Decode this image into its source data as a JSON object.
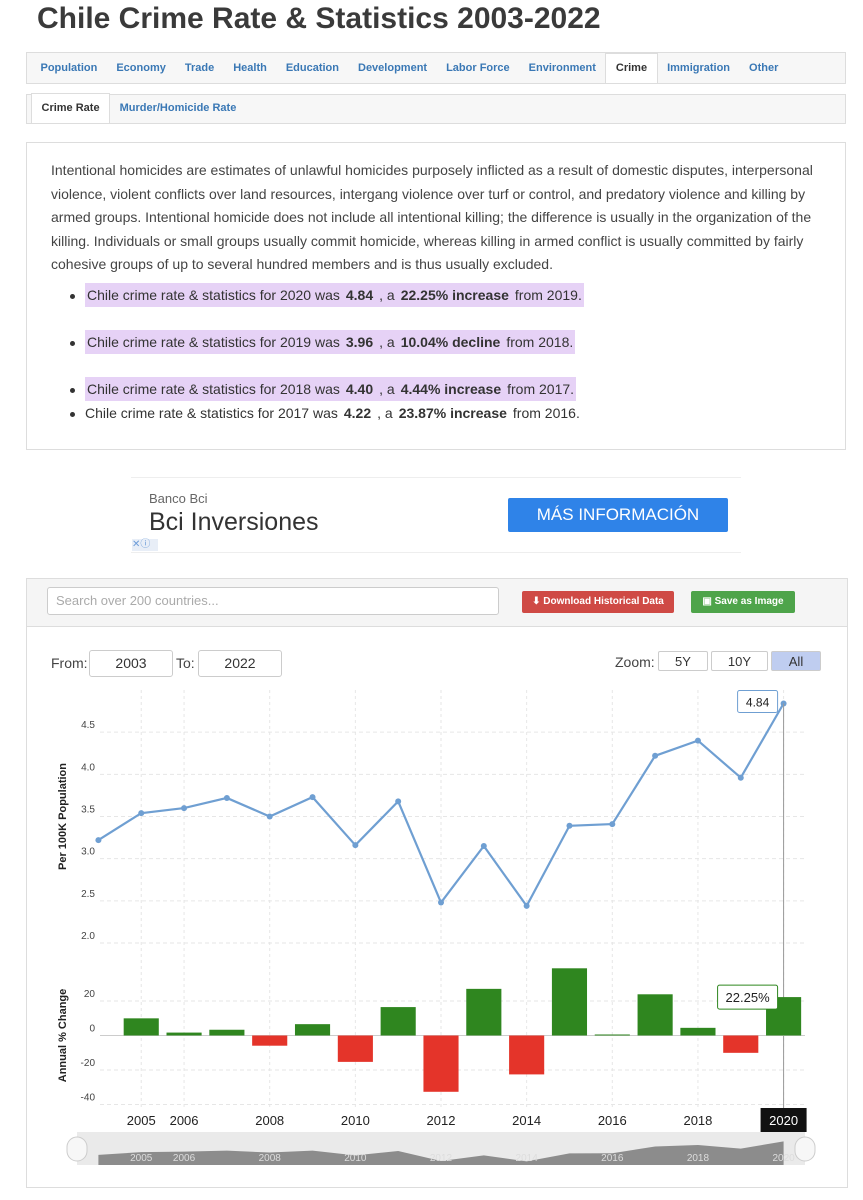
{
  "title": "Chile Crime Rate & Statistics 2003-2022",
  "tabs": [
    "Population",
    "Economy",
    "Trade",
    "Health",
    "Education",
    "Development",
    "Labor Force",
    "Environment",
    "Crime",
    "Immigration",
    "Other"
  ],
  "active_tab": 8,
  "subtabs": [
    "Crime Rate",
    "Murder/Homicide Rate"
  ],
  "active_subtab": 0,
  "description": "Intentional homicides are estimates of unlawful homicides purposely inflicted as a result of domestic disputes, interpersonal violence, violent conflicts over land resources, intergang violence over turf or control, and predatory violence and killing by armed groups. Intentional homicide does not include all intentional killing; the difference is usually in the organization of the killing. Individuals or small groups usually commit homicide, whereas killing in armed conflict is usually committed by fairly cohesive groups of up to several hundred members and is thus usually excluded.",
  "bullets": [
    {
      "text": "Chile crime rate & statistics for 2020 was",
      "value": "4.84",
      "sep": ", a",
      "change": "22.25% increase",
      "suffix": "from 2019.",
      "highlight": true
    },
    {
      "text": "Chile crime rate & statistics for 2019 was",
      "value": "3.96",
      "sep": ", a",
      "change": "10.04% decline",
      "suffix": "from 2018.",
      "highlight": true
    },
    {
      "text": "Chile crime rate & statistics for 2018 was",
      "value": "4.40",
      "sep": ", a",
      "change": "4.44% increase",
      "suffix": "from 2017.",
      "highlight": true
    },
    {
      "text": "Chile crime rate & statistics for 2017 was",
      "value": "4.22",
      "sep": ", a",
      "change": "23.87% increase",
      "suffix": "from 2016.",
      "highlight": false
    }
  ],
  "ad": {
    "advertiser": "Banco Bci",
    "headline": "Bci Inversiones",
    "button": "MÁS INFORMACIÓN"
  },
  "search_placeholder": "Search over 200 countries...",
  "buttons": [
    "Download Historical Data",
    "Save as Image"
  ],
  "range": {
    "from_label": "From:",
    "from": "2003",
    "to_label": "To:",
    "to": "2022"
  },
  "zoom": {
    "label": "Zoom:",
    "options": [
      "5Y",
      "10Y",
      "All"
    ],
    "active": 2
  },
  "chart_data": [
    {
      "type": "line",
      "ylabel": "Per 100K Population",
      "x": [
        2004,
        2005,
        2006,
        2007,
        2008,
        2009,
        2010,
        2011,
        2012,
        2013,
        2014,
        2015,
        2016,
        2017,
        2018,
        2019,
        2020
      ],
      "series": [
        {
          "color": "#6f9fd2",
          "values": [
            3.22,
            3.54,
            3.6,
            3.72,
            3.5,
            3.73,
            3.16,
            3.68,
            2.48,
            3.15,
            2.44,
            3.39,
            3.41,
            4.22,
            4.4,
            3.96,
            4.84
          ]
        }
      ],
      "xlim": [
        2003.5,
        2020.5
      ],
      "xticks": [
        2005,
        2006,
        2008,
        2010,
        2012,
        2014,
        2016,
        2018,
        2020
      ],
      "ylim": [
        2,
        5
      ],
      "yticks": [
        {
          "value": 2,
          "label": "2.0"
        },
        2.5,
        {
          "value": 3,
          "label": "3.0"
        },
        3.5,
        {
          "value": 4,
          "label": "4.0"
        },
        4.5
      ],
      "grid": true
    },
    {
      "type": "bar",
      "ylabel": "Annual % Change",
      "x": [
        2005,
        2006,
        2007,
        2008,
        2009,
        2010,
        2011,
        2012,
        2013,
        2014,
        2015,
        2016,
        2017,
        2018,
        2019,
        2020
      ],
      "values": [
        9.94,
        1.69,
        3.33,
        -5.91,
        6.57,
        -15.28,
        16.46,
        -32.61,
        27.02,
        -22.54,
        38.93,
        0.59,
        23.87,
        4.44,
        -10.04,
        22.25
      ],
      "tooltip_label": "22.25%",
      "positive_color": "#2f861f",
      "negative_color": "#e4342a",
      "xlim": [
        2003.5,
        2020.5
      ],
      "ylim": [
        -42,
        42
      ],
      "yticks": [
        -40,
        -20,
        0,
        20
      ],
      "grid": true
    }
  ]
}
